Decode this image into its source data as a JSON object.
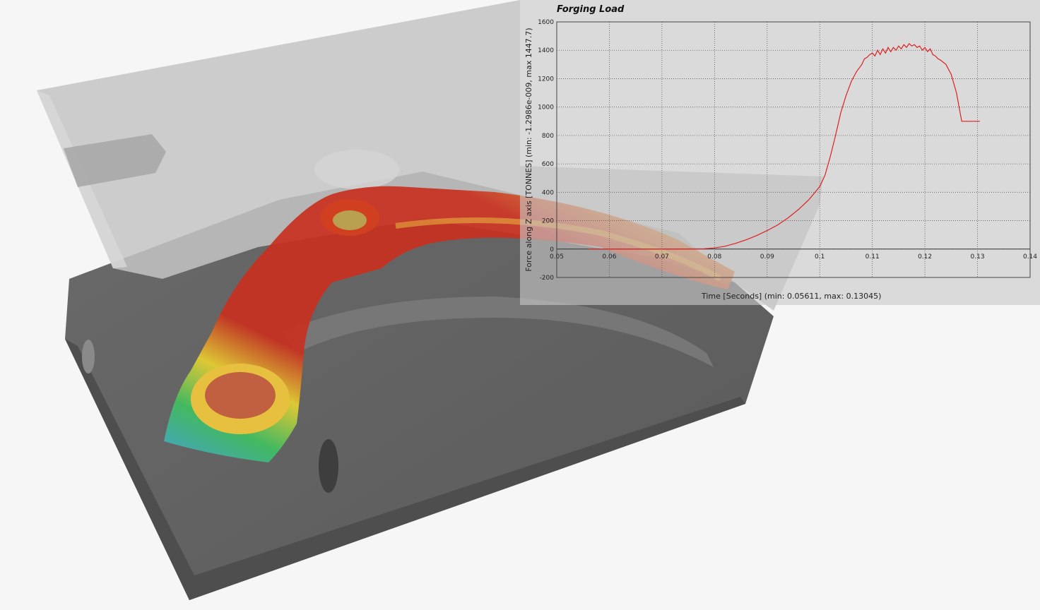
{
  "colors": {
    "series": "#e02020",
    "die_lower": "#5e5e5e",
    "die_upper": "#b8b8b8",
    "hot": "#c83020",
    "warm": "#e0a030",
    "cool": "#30b0d0"
  },
  "chart_data": {
    "type": "line",
    "title": "Forging Load",
    "xlabel": "Time [Seconds] (min: 0.05611, max: 0.13045)",
    "ylabel": "Force along Z axis [TONNES] (min: -1.2986e-009, max 1447.7)",
    "xlim": [
      0.05,
      0.14
    ],
    "ylim": [
      -200,
      1600
    ],
    "x_ticks": [
      "0.05",
      "0.06",
      "0.07",
      "0.08",
      "0.09",
      "0.1",
      "0.11",
      "0.12",
      "0.13",
      "0.14"
    ],
    "y_ticks": [
      "-200",
      "0",
      "200",
      "400",
      "600",
      "800",
      "1000",
      "1200",
      "1400",
      "1600"
    ],
    "grid": true,
    "series": [
      {
        "color": "#e02020",
        "x": [
          0.05611,
          0.07,
          0.078,
          0.08,
          0.082,
          0.084,
          0.086,
          0.088,
          0.09,
          0.092,
          0.094,
          0.096,
          0.098,
          0.1,
          0.101,
          0.102,
          0.103,
          0.104,
          0.105,
          0.106,
          0.107,
          0.108,
          0.1085,
          0.109,
          0.1095,
          0.11,
          0.1105,
          0.111,
          0.1115,
          0.112,
          0.1125,
          0.113,
          0.1135,
          0.114,
          0.1145,
          0.115,
          0.1155,
          0.116,
          0.1165,
          0.117,
          0.1175,
          0.118,
          0.1185,
          0.119,
          0.1195,
          0.12,
          0.1205,
          0.121,
          0.1215,
          0.122,
          0.1225,
          0.123,
          0.124,
          0.125,
          0.126,
          0.127,
          0.128,
          0.129,
          0.13045
        ],
        "y": [
          0,
          0,
          2,
          8,
          20,
          40,
          65,
          95,
          130,
          170,
          220,
          280,
          350,
          440,
          520,
          650,
          800,
          960,
          1080,
          1180,
          1250,
          1300,
          1340,
          1350,
          1370,
          1380,
          1360,
          1400,
          1370,
          1410,
          1380,
          1420,
          1390,
          1420,
          1400,
          1430,
          1410,
          1440,
          1420,
          1447,
          1430,
          1440,
          1420,
          1430,
          1400,
          1420,
          1390,
          1410,
          1370,
          1360,
          1340,
          1330,
          1300,
          1230,
          1100,
          900,
          900,
          900,
          900
        ]
      }
    ]
  }
}
